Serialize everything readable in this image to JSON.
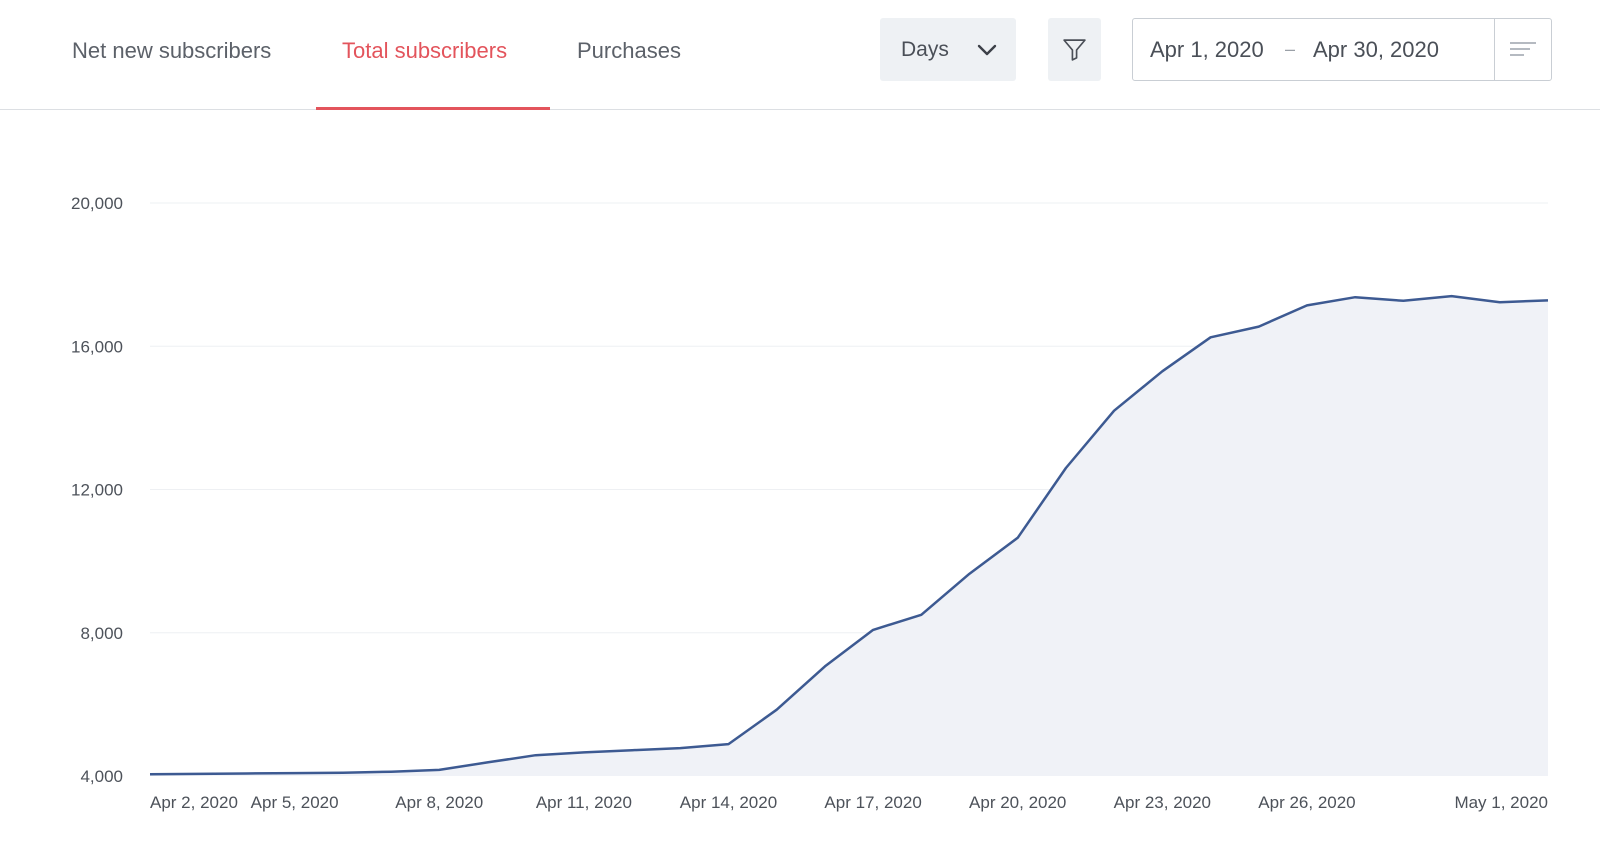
{
  "tabs": [
    {
      "label": "Net new subscribers",
      "active": false
    },
    {
      "label": "Total subscribers",
      "active": true
    },
    {
      "label": "Purchases",
      "active": false
    }
  ],
  "granularity": {
    "selected": "Days",
    "icon": "chevron-down-icon"
  },
  "filter": {
    "icon": "filter-icon"
  },
  "date_range": {
    "start": "Apr 1, 2020",
    "separator": "–",
    "end": "Apr 30, 2020",
    "menu_icon": "sort-lines-icon"
  },
  "colors": {
    "accent": "#e3545c",
    "line": "#3d5a92",
    "area": "#f0f2f7"
  },
  "chart_data": {
    "type": "area",
    "title": "",
    "xlabel": "",
    "ylabel": "",
    "ylim": [
      4000,
      20000
    ],
    "yticks": [
      4000,
      8000,
      12000,
      16000,
      20000
    ],
    "ytick_labels": [
      "4,000",
      "8,000",
      "12,000",
      "16,000",
      "20,000"
    ],
    "x": [
      "Apr 2, 2020",
      "Apr 3, 2020",
      "Apr 4, 2020",
      "Apr 5, 2020",
      "Apr 6, 2020",
      "Apr 7, 2020",
      "Apr 8, 2020",
      "Apr 9, 2020",
      "Apr 10, 2020",
      "Apr 11, 2020",
      "Apr 12, 2020",
      "Apr 13, 2020",
      "Apr 14, 2020",
      "Apr 15, 2020",
      "Apr 16, 2020",
      "Apr 17, 2020",
      "Apr 18, 2020",
      "Apr 19, 2020",
      "Apr 20, 2020",
      "Apr 21, 2020",
      "Apr 22, 2020",
      "Apr 23, 2020",
      "Apr 24, 2020",
      "Apr 25, 2020",
      "Apr 26, 2020",
      "Apr 27, 2020",
      "Apr 28, 2020",
      "Apr 29, 2020",
      "Apr 30, 2020",
      "May 1, 2020"
    ],
    "xtick_labels": [
      "Apr 2, 2020",
      "Apr 5, 2020",
      "Apr 8, 2020",
      "Apr 11, 2020",
      "Apr 14, 2020",
      "Apr 17, 2020",
      "Apr 20, 2020",
      "Apr 23, 2020",
      "Apr 26, 2020",
      "May 1, 2020"
    ],
    "series": [
      {
        "values": [
          4050,
          4060,
          4070,
          4080,
          4090,
          4120,
          4170,
          4380,
          4580,
          4660,
          4720,
          4780,
          4890,
          5850,
          7060,
          8080,
          8500,
          9650,
          10650,
          12600,
          14200,
          15300,
          16250,
          16550,
          17140,
          17370,
          17270,
          17400,
          17230,
          17280
        ]
      }
    ],
    "grid": true,
    "legend": "none"
  }
}
